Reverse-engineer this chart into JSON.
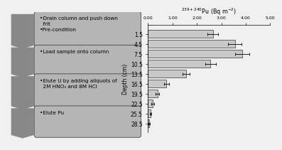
{
  "steps": [
    "•Drain column and push down\n  frit\n•Pre-condition",
    "•Load sample onto column",
    "•Elute U by adding aliquots of\n  2M HNO₃ and 8M HCl",
    "•Elute Pu"
  ],
  "depths": [
    1.5,
    4.5,
    7.5,
    10.5,
    13.5,
    16.5,
    19.5,
    22.5,
    25.5,
    28.5
  ],
  "values": [
    2.65,
    3.55,
    3.85,
    2.55,
    1.55,
    0.75,
    0.38,
    0.18,
    0.1,
    0.05
  ],
  "errors": [
    0.22,
    0.28,
    0.28,
    0.22,
    0.15,
    0.1,
    0.08,
    0.06,
    0.04,
    0.03
  ],
  "xlim": [
    0,
    5.0
  ],
  "xticks": [
    0.0,
    1.0,
    2.0,
    3.0,
    4.0,
    5.0
  ],
  "xtick_labels": [
    "0.00",
    "1.00",
    "2.00",
    "3.00",
    "4.00",
    "5.00"
  ],
  "xlabel": "$^{239+240}$Pu (Bq m$^{-2}$)",
  "ylabel": "Depth (cm)",
  "box_color": "#b5b5b5",
  "bar_color": "#c8c8c8",
  "bar_edge_color": "#333333",
  "arrow_color": "#888888",
  "background_color": "#f0f0f0",
  "text_fontsize": 5.2,
  "axis_fontsize": 6.0,
  "title_fontsize": 5.8
}
